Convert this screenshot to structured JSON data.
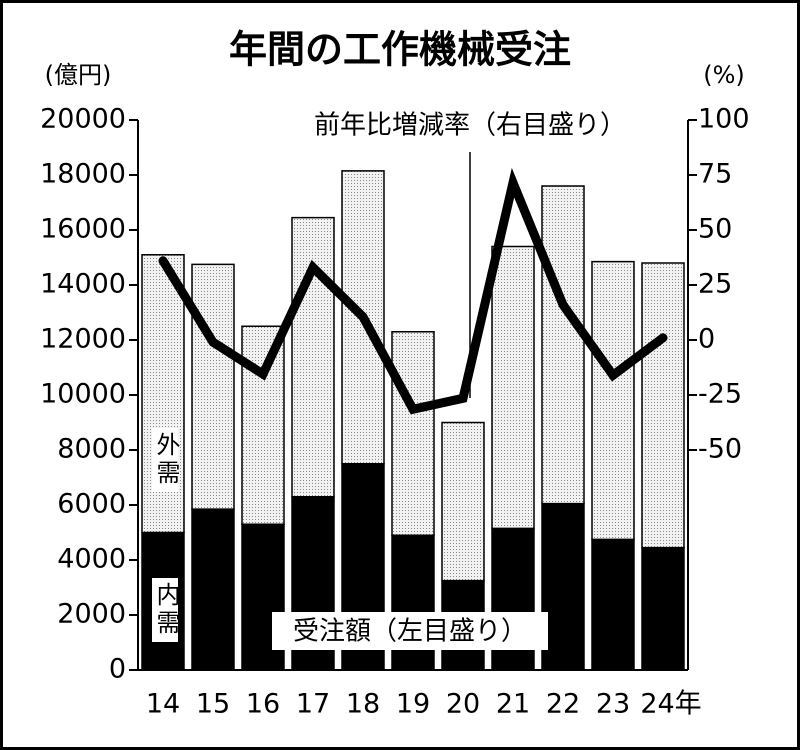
{
  "chart_data": {
    "type": "bar",
    "stacked": true,
    "title": "年間の工作機械受注",
    "y_label": "(億円)",
    "y2_label": "(%)",
    "annotations": [
      "前年比増減率（右目盛り）",
      "受注額（左目盛り）"
    ],
    "categories": [
      "14",
      "15",
      "16",
      "17",
      "18",
      "19",
      "20",
      "21",
      "22",
      "23",
      "24年"
    ],
    "series": [
      {
        "name": "内需",
        "color": "#000000",
        "values": [
          5000,
          5850,
          5300,
          6300,
          7500,
          4900,
          3250,
          5150,
          6050,
          4750,
          4450
        ]
      },
      {
        "name": "外需",
        "color": "#dedede",
        "values": [
          10100,
          8900,
          7200,
          10150,
          10650,
          7400,
          5750,
          10250,
          11550,
          10100,
          10350
        ]
      },
      {
        "type": "line",
        "axis": "y2",
        "color": "#000000",
        "values": [
          36,
          -1,
          -15.5,
          33,
          10.5,
          -31.5,
          -26.5,
          71.5,
          16,
          -16,
          1
        ]
      }
    ],
    "ylim": [
      0,
      20000
    ],
    "yticks": [
      0,
      2000,
      4000,
      6000,
      8000,
      10000,
      12000,
      14000,
      16000,
      18000,
      20000
    ],
    "y2lim": [
      -150,
      100
    ],
    "y2ticks": [
      -50,
      -25,
      0,
      25,
      50,
      75,
      100
    ]
  }
}
